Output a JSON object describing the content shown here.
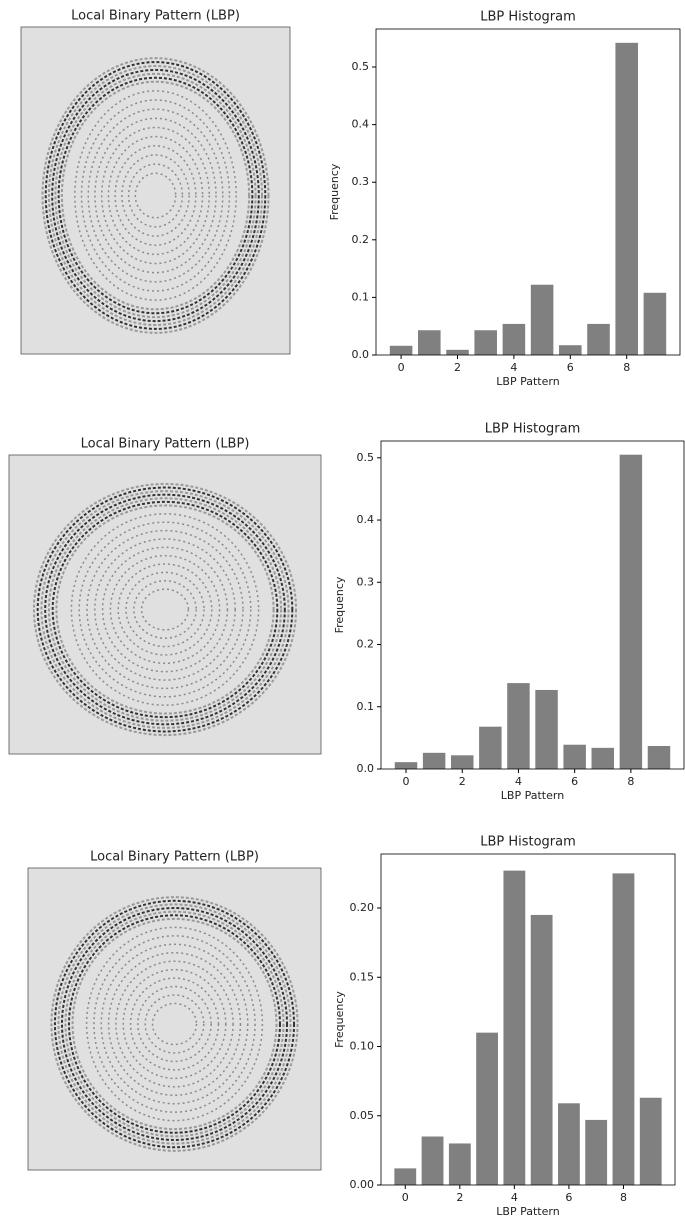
{
  "chart_data": [
    {
      "type": "image",
      "title": "Local Binary Pattern (LBP)"
    },
    {
      "type": "bar",
      "title": "LBP Histogram",
      "xlabel": "LBP Pattern",
      "ylabel": "Frequency",
      "color": "#808080",
      "x": [
        0,
        1,
        2,
        3,
        4,
        5,
        6,
        7,
        8,
        9
      ],
      "values": [
        0.016,
        0.043,
        0.009,
        0.043,
        0.054,
        0.122,
        0.017,
        0.054,
        0.542,
        0.108
      ],
      "xlim": [
        -0.89,
        9.89
      ],
      "xticks": [
        0,
        2,
        4,
        6,
        8
      ],
      "ylim": [
        0,
        0.566
      ],
      "yticks": [
        {
          "value": 0,
          "label": "0.0"
        },
        0.1,
        0.2,
        0.3,
        0.4,
        0.5
      ]
    },
    {
      "type": "image",
      "title": "Local Binary Pattern (LBP)"
    },
    {
      "type": "bar",
      "title": "LBP Histogram",
      "xlabel": "LBP Pattern",
      "ylabel": "Frequency",
      "color": "#808080",
      "x": [
        0,
        1,
        2,
        3,
        4,
        5,
        6,
        7,
        8,
        9
      ],
      "values": [
        0.011,
        0.026,
        0.022,
        0.068,
        0.138,
        0.127,
        0.039,
        0.034,
        0.505,
        0.037
      ],
      "xlim": [
        -0.89,
        9.89
      ],
      "xticks": [
        0,
        2,
        4,
        6,
        8
      ],
      "ylim": [
        0,
        0.527
      ],
      "yticks": [
        {
          "value": 0,
          "label": "0.0"
        },
        0.1,
        0.2,
        0.3,
        0.4,
        0.5
      ]
    },
    {
      "type": "image",
      "title": "Local Binary Pattern (LBP)"
    },
    {
      "type": "bar",
      "title": "LBP Histogram",
      "xlabel": "LBP Pattern",
      "ylabel": "Frequency",
      "color": "#808080",
      "x": [
        0,
        1,
        2,
        3,
        4,
        5,
        6,
        7,
        8,
        9
      ],
      "values": [
        0.012,
        0.035,
        0.03,
        0.11,
        0.227,
        0.195,
        0.059,
        0.047,
        0.225,
        0.063
      ],
      "xlim": [
        -0.89,
        9.89
      ],
      "xticks": [
        0,
        2,
        4,
        6,
        8
      ],
      "ylim": [
        0,
        0.239
      ],
      "yticks": [
        {
          "value": 0,
          "label": "0.00"
        },
        {
          "value": 0.05,
          "label": "0.05"
        },
        {
          "value": 0.1,
          "label": "0.10"
        },
        {
          "value": 0.15,
          "label": "0.15"
        },
        {
          "value": 0.2,
          "label": "0.20"
        }
      ]
    }
  ]
}
